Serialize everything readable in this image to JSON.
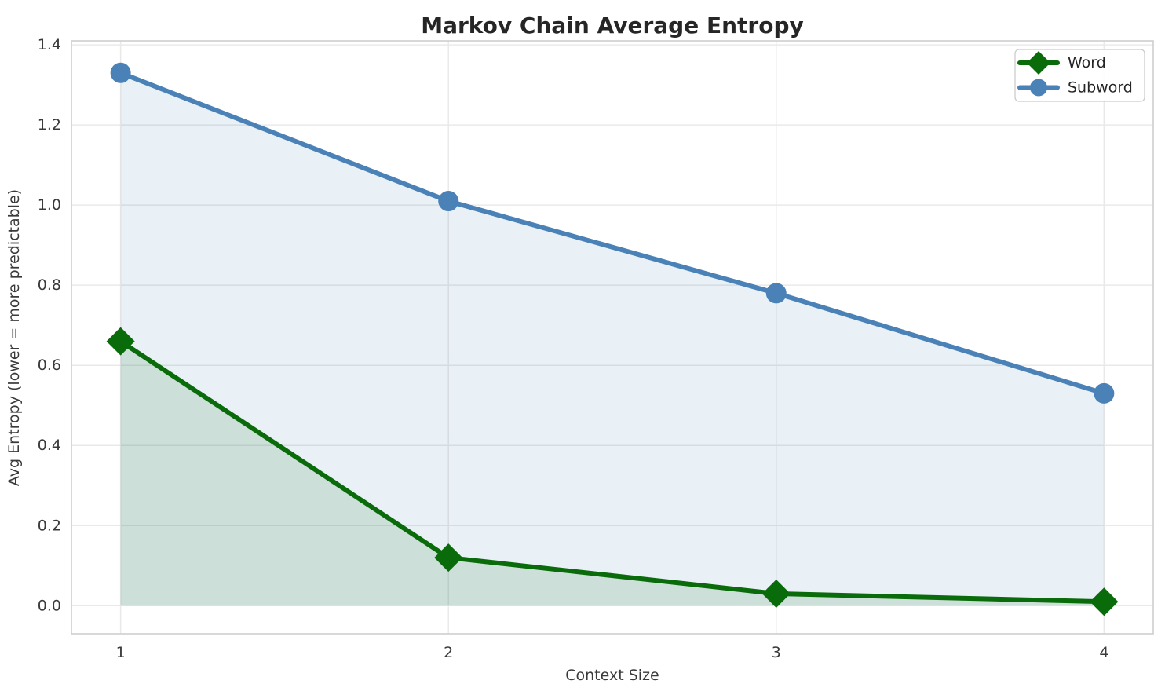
{
  "chart_data": {
    "type": "line",
    "title": "Markov Chain Average Entropy",
    "xlabel": "Context Size",
    "ylabel": "Avg Entropy (lower = more predictable)",
    "x": [
      1,
      2,
      3,
      4
    ],
    "xtick_labels": [
      "1",
      "2",
      "3",
      "4"
    ],
    "ytick_values": [
      0.0,
      0.2,
      0.4,
      0.6,
      0.8,
      1.0,
      1.2,
      1.4
    ],
    "ytick_labels": [
      "0.0",
      "0.2",
      "0.4",
      "0.6",
      "0.8",
      "1.0",
      "1.2",
      "1.4"
    ],
    "xlim": [
      0.85,
      4.15
    ],
    "ylim": [
      -0.07,
      1.41
    ],
    "grid": true,
    "area_fill_to_zero": true,
    "legend_position": "upper right",
    "series": [
      {
        "name": "Word",
        "marker": "diamond",
        "color": "#0a6b0a",
        "fill_opacity": 0.12,
        "values": [
          0.66,
          0.12,
          0.03,
          0.01
        ]
      },
      {
        "name": "Subword",
        "marker": "circle",
        "color": "#4a82b8",
        "fill_opacity": 0.12,
        "values": [
          1.33,
          1.01,
          0.78,
          0.53
        ]
      }
    ],
    "colors": {
      "grid": "#e9e9e9",
      "spine": "#cfcfcf",
      "text": "#3a3a3a",
      "title_text": "#262626",
      "legend_border": "#cccccc",
      "background": "#ffffff"
    }
  }
}
